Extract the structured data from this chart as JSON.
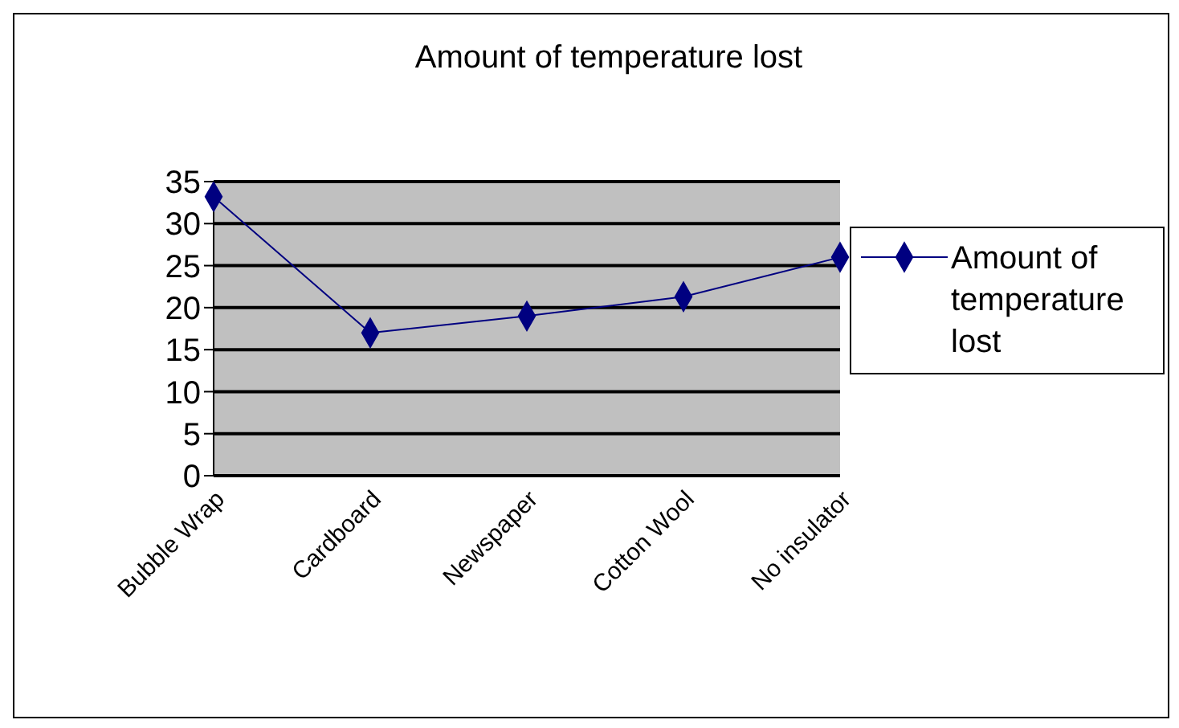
{
  "chart_data": {
    "type": "line",
    "title": "Amount of temperature lost",
    "categories": [
      "Bubble Wrap",
      "Cardboard",
      "Newspaper",
      "Cotton Wool",
      "No insulator"
    ],
    "series": [
      {
        "name": "Amount of temperature lost",
        "color": "#000080",
        "values": [
          33.2,
          17,
          19,
          21.3,
          26
        ]
      }
    ],
    "ylim": [
      0,
      35
    ],
    "yticks": [
      0,
      5,
      10,
      15,
      20,
      25,
      30,
      35
    ],
    "grid": "y",
    "legend": "right",
    "marker": "diamond"
  }
}
